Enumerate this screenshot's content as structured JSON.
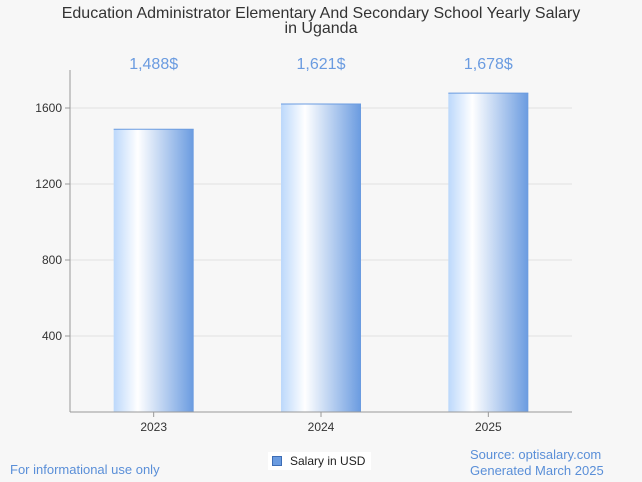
{
  "chart_data": {
    "type": "bar",
    "title_lines": [
      "Education Administrator Elementary And Secondary School Yearly Salary",
      "in Uganda"
    ],
    "categories": [
      "2023",
      "2024",
      "2025"
    ],
    "values": [
      1488,
      1621,
      1678
    ],
    "value_labels": [
      "1,488$",
      "1,621$",
      "1,678$"
    ],
    "y_ticks": [
      400,
      800,
      1200,
      1600
    ],
    "ylim": [
      0,
      1800
    ],
    "grid": true,
    "series": [
      {
        "name": "Salary in USD",
        "values": [
          1488,
          1621,
          1678
        ]
      }
    ],
    "legend_position": "bottom",
    "colors": {
      "bar_light": "#ffffff",
      "bar_mid": "#bcd8fb",
      "bar_dark": "#6a9be0",
      "label": "#6a9be0"
    }
  },
  "footer": {
    "disclaimer": "For informational use only",
    "source": "Source: optisalary.com",
    "generated": "Generated March 2025"
  }
}
